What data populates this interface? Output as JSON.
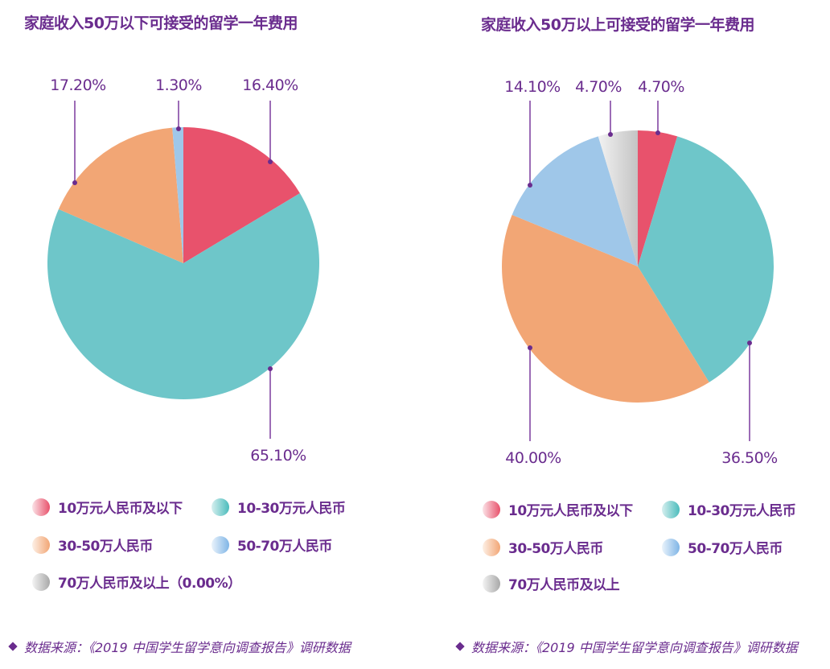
{
  "chart_data": [
    {
      "type": "pie",
      "title": "家庭收入50万以下可接受的留学一年费用",
      "categories": [
        "10万元人民币及以下",
        "10-30万元人民币",
        "30-50万人民币",
        "50-70万人民币",
        "70万人民币及以上"
      ],
      "values": [
        16.4,
        65.1,
        17.2,
        1.3,
        0.0
      ],
      "labels": [
        "16.40%",
        "65.10%",
        "17.20%",
        "1.30%",
        "0.00%"
      ],
      "colors": [
        "#e8526c",
        "#6ec6c9",
        "#f2a675",
        "#9fc7e9",
        "#d6d6d6"
      ],
      "start_angle": "12 o'clock, clockwise",
      "legend_position": "bottom"
    },
    {
      "type": "pie",
      "title": "家庭收入50万以上可接受的留学一年费用",
      "categories": [
        "10万元人民币及以下",
        "10-30万元人民币",
        "30-50万人民币",
        "50-70万人民币",
        "70万人民币及以上"
      ],
      "values": [
        4.7,
        36.5,
        40.0,
        14.1,
        4.7
      ],
      "labels": [
        "4.70%",
        "36.50%",
        "40.00%",
        "14.10%",
        "4.70%"
      ],
      "colors": [
        "#e8526c",
        "#6ec6c9",
        "#f2a675",
        "#9fc7e9",
        "#d6d6d6"
      ],
      "start_angle": "12 o'clock, clockwise",
      "legend_position": "bottom"
    }
  ],
  "left": {
    "title": "家庭收入50万以下可接受的留学一年费用",
    "labels": {
      "red": "16.40%",
      "teal": "65.10%",
      "orange": "17.20%",
      "blue": "1.30%"
    },
    "legend": [
      {
        "label": "10万元人民币及以下",
        "color": "#e8526c"
      },
      {
        "label": "10-30万元人民币",
        "color": "#4bbcbc"
      },
      {
        "label": "30-50万人民币",
        "color": "#f2a675"
      },
      {
        "label": "50-70万人民币",
        "color": "#7fb5e6"
      },
      {
        "label": "70万人民币及以上（0.00%）",
        "color": "#a8a8a8"
      }
    ],
    "source": "数据来源：《2019 中国学生留学意向调查报告》调研数据"
  },
  "right": {
    "title": "家庭收入50万以上可接受的留学一年费用",
    "labels": {
      "red": "4.70%",
      "teal": "36.50%",
      "orange": "40.00%",
      "blue": "14.10%",
      "grey": "4.70%"
    },
    "legend": [
      {
        "label": "10万元人民币及以下",
        "color": "#e8526c"
      },
      {
        "label": "10-30万元人民币",
        "color": "#4bbcbc"
      },
      {
        "label": "30-50万人民币",
        "color": "#f2a675"
      },
      {
        "label": "50-70万人民币",
        "color": "#7fb5e6"
      },
      {
        "label": "70万人民币及以上",
        "color": "#a8a8a8"
      }
    ],
    "source": "数据来源：《2019 中国学生留学意向调查报告》调研数据"
  },
  "theme": {
    "text": "#6a2c8e",
    "leader": "#7a3a9e"
  }
}
